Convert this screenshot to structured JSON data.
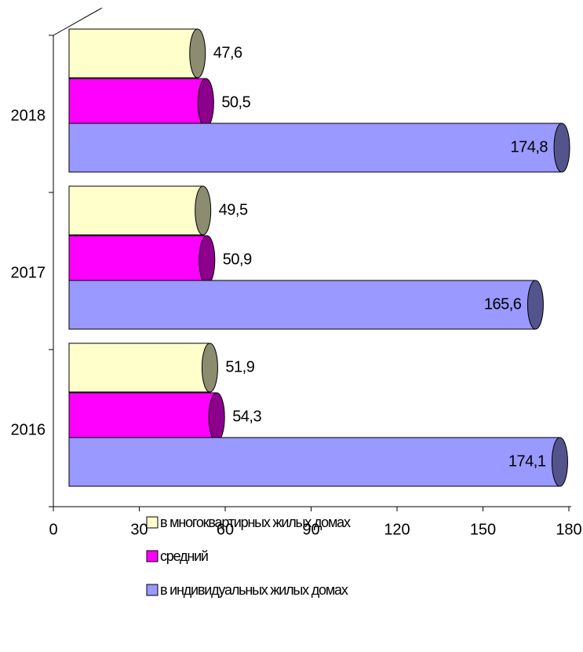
{
  "chart_data": {
    "type": "bar",
    "orientation": "horizontal",
    "categories": [
      "2016",
      "2017",
      "2018"
    ],
    "series": [
      {
        "name": "в многоквартирных жилых домах",
        "color": "#ffffcc",
        "values": [
          51.9,
          49.5,
          47.6
        ],
        "value_labels": [
          "51,9",
          "49,5",
          "47,6"
        ]
      },
      {
        "name": "средний",
        "color": "#ff00ff",
        "values": [
          54.3,
          50.9,
          50.5
        ],
        "value_labels": [
          "54,3",
          "50,9",
          "50,5"
        ]
      },
      {
        "name": "в индивидуальных жилых домах",
        "color": "#9999ff",
        "values": [
          174.1,
          165.6,
          174.8
        ],
        "value_labels": [
          "174,1",
          "165,6",
          "174,8"
        ]
      }
    ],
    "xlim": [
      0,
      180
    ],
    "xticks": [
      0,
      30,
      60,
      90,
      120,
      150,
      180
    ],
    "legend": "bottom"
  }
}
